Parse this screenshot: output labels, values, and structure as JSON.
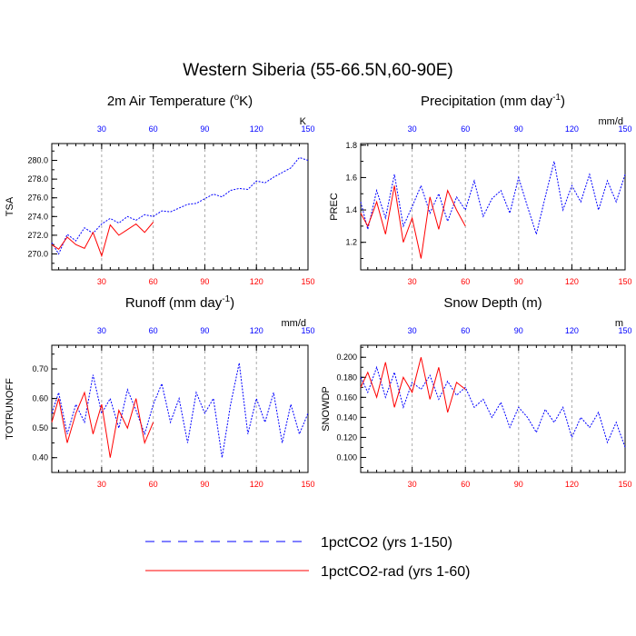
{
  "figure": {
    "title": "Western Siberia (55-66.5N,60-90E)"
  },
  "legend": {
    "entries": [
      {
        "label": "1pctCO2 (yrs 1-150)",
        "color": "#0000ff",
        "dash": true
      },
      {
        "label": "1pctCO2-rad (yrs 1-60)",
        "color": "#ff0000",
        "dash": false
      }
    ]
  },
  "colors": {
    "series_1pct": "#0000ff",
    "series_rad": "#ff0000",
    "top_ticks": "#0000ff",
    "bottom_ticks": "#ff0000"
  },
  "chart_data": [
    {
      "type": "line",
      "title_text": "2m Air Temperature (",
      "title_sup_o": "o",
      "title_tail": "K)",
      "ylabel": "TSA",
      "unit": "K",
      "xlim": [
        1,
        150
      ],
      "ylim": [
        268.3,
        281.8
      ],
      "yticks": [
        270.0,
        272.0,
        274.0,
        276.0,
        278.0,
        280.0
      ],
      "ytick_labels": [
        "270.0",
        "272.0",
        "274.0",
        "276.0",
        "278.0",
        "280.0"
      ],
      "xticks": [
        30,
        60,
        90,
        120,
        150
      ],
      "bottom_tick_labels": [
        "30",
        "60",
        "90",
        "120",
        "150"
      ],
      "top_tick_labels": [
        "30",
        "60",
        "90",
        "120",
        "150"
      ],
      "grid_vertical": true,
      "series": [
        {
          "name": "1pctCO2 (yrs 1-150)",
          "x": [
            1,
            5,
            10,
            15,
            20,
            25,
            30,
            35,
            40,
            45,
            50,
            55,
            60,
            65,
            70,
            75,
            80,
            85,
            90,
            95,
            100,
            105,
            110,
            115,
            120,
            125,
            130,
            135,
            140,
            145,
            150
          ],
          "values": [
            271.2,
            270.0,
            272.1,
            271.4,
            272.8,
            272.2,
            273.2,
            273.8,
            273.3,
            274.0,
            273.6,
            274.2,
            274.0,
            274.6,
            274.5,
            274.9,
            275.3,
            275.4,
            275.9,
            276.4,
            276.1,
            276.8,
            277.0,
            276.9,
            277.8,
            277.6,
            278.2,
            278.7,
            279.2,
            280.3,
            280.0
          ]
        },
        {
          "name": "1pctCO2-rad (yrs 1-60)",
          "x": [
            1,
            5,
            10,
            15,
            20,
            25,
            30,
            35,
            40,
            45,
            50,
            55,
            60
          ],
          "values": [
            271.0,
            270.5,
            271.8,
            271.0,
            270.6,
            272.3,
            269.8,
            273.1,
            272.0,
            272.6,
            273.2,
            272.3,
            273.4
          ]
        }
      ]
    },
    {
      "type": "line",
      "title_text": "Precipitation (mm day",
      "title_sup": "-1",
      "title_tail": ")",
      "ylabel": "PREC",
      "unit": "mm/d",
      "xlim": [
        1,
        150
      ],
      "ylim": [
        1.03,
        1.81
      ],
      "yticks": [
        1.2,
        1.4,
        1.6,
        1.8
      ],
      "ytick_labels": [
        "1.2",
        "1.4",
        "1.6",
        "1.8"
      ],
      "xticks": [
        30,
        60,
        90,
        120,
        150
      ],
      "bottom_tick_labels": [
        "30",
        "60",
        "90",
        "120",
        "150"
      ],
      "top_tick_labels": [
        "30",
        "60",
        "90",
        "120",
        "150"
      ],
      "grid_vertical": true,
      "series": [
        {
          "name": "1pctCO2 (yrs 1-150)",
          "x": [
            1,
            5,
            10,
            15,
            20,
            25,
            30,
            35,
            40,
            45,
            50,
            55,
            60,
            65,
            70,
            75,
            80,
            85,
            90,
            95,
            100,
            105,
            110,
            115,
            120,
            125,
            130,
            135,
            140,
            145,
            150
          ],
          "values": [
            1.45,
            1.28,
            1.52,
            1.35,
            1.62,
            1.3,
            1.42,
            1.55,
            1.38,
            1.5,
            1.33,
            1.48,
            1.4,
            1.58,
            1.36,
            1.47,
            1.52,
            1.38,
            1.6,
            1.42,
            1.25,
            1.48,
            1.7,
            1.4,
            1.55,
            1.45,
            1.62,
            1.4,
            1.58,
            1.45,
            1.62
          ]
        },
        {
          "name": "1pctCO2-rad (yrs 1-60)",
          "x": [
            1,
            5,
            10,
            15,
            20,
            25,
            30,
            35,
            40,
            45,
            50,
            55,
            60
          ],
          "values": [
            1.38,
            1.3,
            1.45,
            1.25,
            1.55,
            1.2,
            1.35,
            1.1,
            1.48,
            1.28,
            1.52,
            1.4,
            1.3
          ]
        }
      ]
    },
    {
      "type": "line",
      "title_text": "Runoff (mm day",
      "title_sup": "-1",
      "title_tail": ")",
      "ylabel": "TOTRUNOFF",
      "unit": "mm/d",
      "xlim": [
        1,
        150
      ],
      "ylim": [
        0.35,
        0.78
      ],
      "yticks": [
        0.4,
        0.5,
        0.6,
        0.7
      ],
      "ytick_labels": [
        "0.40",
        "0.50",
        "0.60",
        "0.70"
      ],
      "xticks": [
        30,
        60,
        90,
        120,
        150
      ],
      "bottom_tick_labels": [
        "30",
        "60",
        "90",
        "120",
        "150"
      ],
      "top_tick_labels": [
        "30",
        "60",
        "90",
        "120",
        "150"
      ],
      "grid_vertical": true,
      "series": [
        {
          "name": "1pctCO2 (yrs 1-150)",
          "x": [
            1,
            5,
            10,
            15,
            20,
            25,
            30,
            35,
            40,
            45,
            50,
            55,
            60,
            65,
            70,
            75,
            80,
            85,
            90,
            95,
            100,
            105,
            110,
            115,
            120,
            125,
            130,
            135,
            140,
            145,
            150
          ],
          "values": [
            0.55,
            0.62,
            0.48,
            0.58,
            0.52,
            0.68,
            0.55,
            0.6,
            0.5,
            0.63,
            0.56,
            0.48,
            0.58,
            0.65,
            0.52,
            0.6,
            0.45,
            0.62,
            0.55,
            0.6,
            0.4,
            0.58,
            0.72,
            0.48,
            0.6,
            0.52,
            0.62,
            0.45,
            0.58,
            0.48,
            0.55
          ]
        },
        {
          "name": "1pctCO2-rad (yrs 1-60)",
          "x": [
            1,
            5,
            10,
            15,
            20,
            25,
            30,
            35,
            40,
            45,
            50,
            55,
            60
          ],
          "values": [
            0.52,
            0.6,
            0.45,
            0.55,
            0.62,
            0.48,
            0.58,
            0.4,
            0.56,
            0.5,
            0.6,
            0.45,
            0.52
          ]
        }
      ]
    },
    {
      "type": "line",
      "title_text": "Snow Depth (m)",
      "title_sup": "",
      "title_tail": "",
      "ylabel": "SNOWDP",
      "unit": "m",
      "xlim": [
        1,
        150
      ],
      "ylim": [
        0.085,
        0.212
      ],
      "yticks": [
        0.1,
        0.12,
        0.14,
        0.16,
        0.18,
        0.2
      ],
      "ytick_labels": [
        "0.100",
        "0.120",
        "0.140",
        "0.160",
        "0.180",
        "0.200"
      ],
      "xticks": [
        30,
        60,
        90,
        120,
        150
      ],
      "bottom_tick_labels": [
        "30",
        "60",
        "90",
        "120",
        "150"
      ],
      "top_tick_labels": [
        "30",
        "60",
        "90",
        "120",
        "150"
      ],
      "grid_vertical": true,
      "series": [
        {
          "name": "1pctCO2 (yrs 1-150)",
          "x": [
            1,
            5,
            10,
            15,
            20,
            25,
            30,
            35,
            40,
            45,
            50,
            55,
            60,
            65,
            70,
            75,
            80,
            85,
            90,
            95,
            100,
            105,
            110,
            115,
            120,
            125,
            130,
            135,
            140,
            145,
            150
          ],
          "values": [
            0.18,
            0.165,
            0.19,
            0.16,
            0.185,
            0.15,
            0.175,
            0.168,
            0.182,
            0.158,
            0.176,
            0.162,
            0.17,
            0.15,
            0.158,
            0.14,
            0.155,
            0.13,
            0.15,
            0.14,
            0.125,
            0.148,
            0.135,
            0.15,
            0.12,
            0.14,
            0.13,
            0.145,
            0.115,
            0.135,
            0.11
          ]
        },
        {
          "name": "1pctCO2-rad (yrs 1-60)",
          "x": [
            1,
            5,
            10,
            15,
            20,
            25,
            30,
            35,
            40,
            45,
            50,
            55,
            60
          ],
          "values": [
            0.17,
            0.185,
            0.16,
            0.195,
            0.15,
            0.18,
            0.165,
            0.2,
            0.158,
            0.19,
            0.145,
            0.175,
            0.168
          ]
        }
      ]
    }
  ]
}
